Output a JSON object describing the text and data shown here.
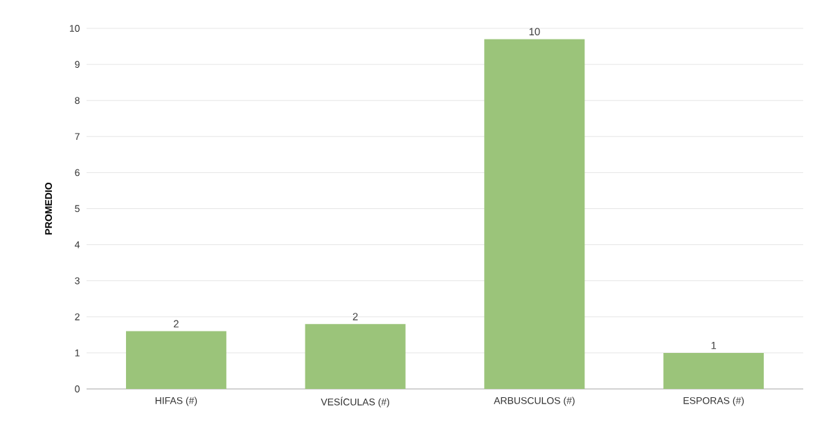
{
  "chart_data": {
    "type": "bar",
    "ylabel": "PROMEDIO",
    "categories": [
      "HIFAS (#)",
      "VESÍCULAS (#)",
      "ARBUSCULOS (#)",
      "ESPORAS (#)"
    ],
    "values": [
      1.6,
      1.8,
      9.7,
      1.0
    ],
    "color": "#9bc47a",
    "value_labels": [
      "2",
      "2",
      "10",
      "1"
    ],
    "ylim": [
      0,
      10
    ],
    "yticks": [
      0,
      1,
      2,
      3,
      4,
      5,
      6,
      7,
      8,
      9,
      10
    ],
    "grid": "y"
  }
}
